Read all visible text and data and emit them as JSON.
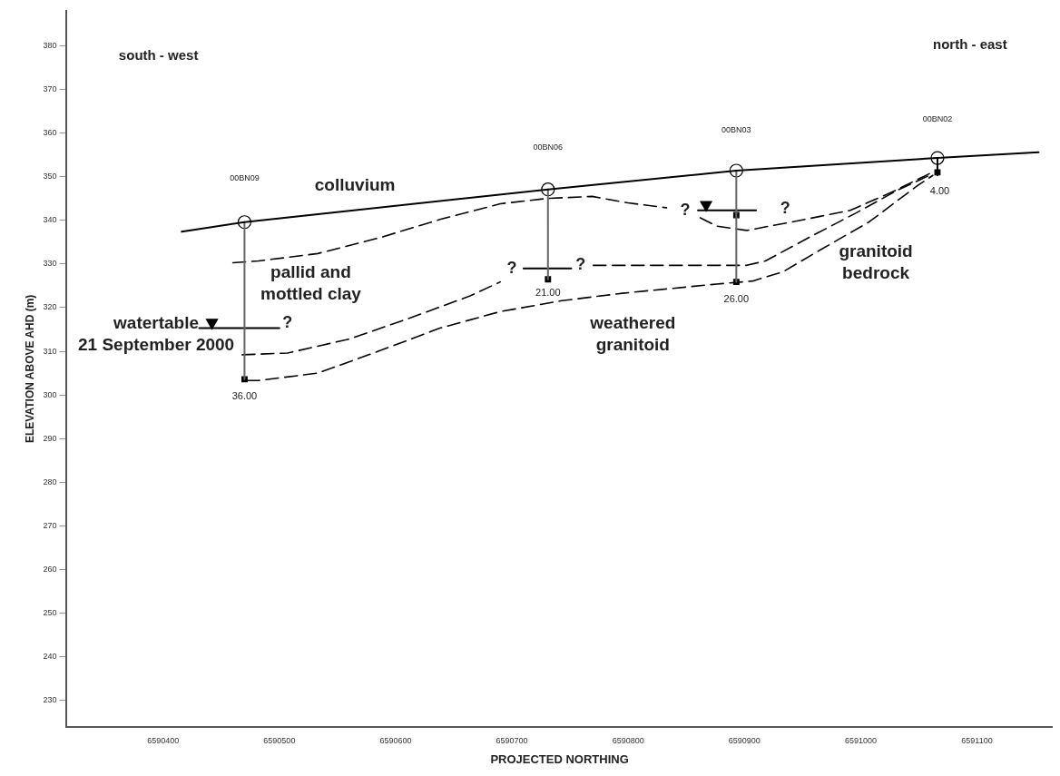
{
  "chart_data": {
    "type": "line",
    "xlabel": "PROJECTED NORTHING",
    "ylabel": "ELEVATION ABOVE AHD (m)",
    "xlim": [
      6590317,
      6591165
    ],
    "ylim": [
      224,
      388
    ],
    "xticks": [
      6590400,
      6590500,
      6590600,
      6590700,
      6590800,
      6590900,
      6591000,
      6591100
    ],
    "yticks": [
      230,
      240,
      250,
      260,
      270,
      280,
      290,
      300,
      310,
      320,
      330,
      340,
      350,
      360,
      370,
      380
    ],
    "series": [
      {
        "color": "#000000",
        "line_style": "solid",
        "marker": "none",
        "x": [
          6590416,
          6590470,
          6590731,
          6590893,
          6591066,
          6591153
        ],
        "values": [
          337.4,
          339.6,
          347.1,
          351.4,
          354.3,
          355.6
        ]
      },
      {
        "type": "line",
        "color": "#666666",
        "line_style": "solid",
        "marker": "none",
        "x": [
          6590470,
          6590470
        ],
        "values": [
          339.6,
          303.6
        ]
      },
      {
        "type": "line",
        "color": "#666666",
        "line_style": "solid",
        "marker": "none",
        "x": [
          6590731,
          6590731
        ],
        "values": [
          347.1,
          326.5
        ]
      },
      {
        "type": "line",
        "color": "#666666",
        "line_style": "solid",
        "marker": "none",
        "x": [
          6590893,
          6590893
        ],
        "values": [
          351.4,
          325.9
        ]
      },
      {
        "type": "line",
        "color": "#000000",
        "line_style": "solid",
        "marker": "none",
        "x": [
          6591066,
          6591066
        ],
        "values": [
          354.3,
          350.3
        ]
      },
      {
        "type": "line",
        "color": "#000000",
        "line_style": "dashed",
        "marker": "none",
        "x": [
          6590460,
          6590482,
          6590533,
          6590586,
          6590638,
          6590690,
          6590729,
          6590769,
          6590800,
          6590833,
          6590849,
          6590862,
          6590876,
          6590902,
          6590944,
          6590991,
          6591027,
          6591059
        ],
        "values": [
          330.3,
          330.7,
          332.4,
          336.0,
          340.2,
          343.8,
          345.0,
          345.5,
          344.0,
          342.9,
          null,
          340.6,
          338.7,
          337.7,
          339.8,
          342.3,
          346.5,
          350.7
        ]
      },
      {
        "type": "line",
        "color": "#000000",
        "line_style": "dashed",
        "marker": "none",
        "x": [
          6590468,
          6590507,
          6590560,
          6590612,
          6590664,
          6590690,
          6590730,
          6590770,
          6590902,
          6590918,
          6590955,
          6590996,
          6591033,
          6591059
        ],
        "values": [
          309.2,
          309.6,
          312.8,
          317.6,
          322.7,
          325.9,
          null,
          329.7,
          329.7,
          330.7,
          336.0,
          341.7,
          347.1,
          350.3
        ]
      },
      {
        "type": "line",
        "color": "#000000",
        "line_style": "dashed",
        "marker": "none",
        "x": [
          6590472,
          6590482,
          6590533,
          6590586,
          6590638,
          6590690,
          6590743,
          6590795,
          6590876,
          6590907,
          6590933,
          6590965,
          6591007,
          6591049,
          6591062
        ],
        "values": [
          303.3,
          303.3,
          305.0,
          310.1,
          315.3,
          319.1,
          321.6,
          323.3,
          325.4,
          326.1,
          328.2,
          333.2,
          339.6,
          348.0,
          350.3
        ]
      },
      {
        "type": "line",
        "color": "#000000",
        "line_style": "solid",
        "marker": "none",
        "x": [
          6590431,
          6590500,
          6590600,
          6590710,
          6590751,
          6590800,
          6590860,
          6590910
        ],
        "values": [
          315.3,
          315.3,
          null,
          329.0,
          329.0,
          null,
          342.3,
          342.3
        ]
      },
      {
        "type": "scatter",
        "color": "#000000",
        "marker": "circle",
        "x": [
          6590470,
          6590731,
          6590893,
          6591066
        ],
        "values": [
          339.6,
          347.1,
          351.4,
          354.3
        ]
      },
      {
        "type": "scatter",
        "color": "#000000",
        "marker": "triangle",
        "x": [
          6590442,
          6590867
        ],
        "values": [
          316.6,
          343.6
        ]
      },
      {
        "type": "scatter",
        "color": "#000000",
        "marker": "square",
        "x": [
          6590470,
          6590731,
          6590893,
          6590893,
          6591066
        ],
        "values": [
          303.6,
          326.5,
          325.9,
          341.2,
          351.0
        ]
      }
    ],
    "annotations": [
      "south - west",
      "north - east",
      "colluvium",
      "pallid and\nmottled clay",
      "watertable\n21 September 2000",
      "weathered\ngranitoid",
      "granitoid\nbedrock",
      "?",
      "?",
      "?",
      "?",
      "?",
      "00BN09",
      "00BN06",
      "00BN03",
      "00BN02",
      "36.00",
      "21.00",
      "26.00",
      "4.00"
    ]
  }
}
